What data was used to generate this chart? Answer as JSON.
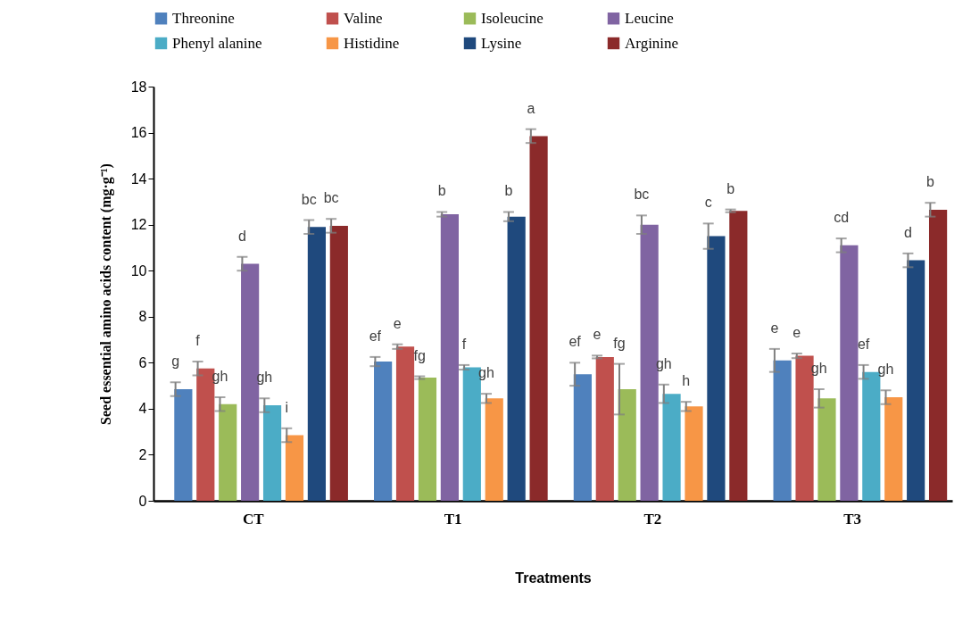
{
  "chart_data": {
    "type": "bar",
    "xlabel": "Treatments",
    "ylabel": "Seed essential amino acids content (mg·g⁻¹)",
    "categories": [
      "CT",
      "T1",
      "T2",
      "T3"
    ],
    "ylim": [
      0,
      18
    ],
    "yticks": [
      0,
      2,
      4,
      6,
      8,
      10,
      12,
      14,
      16,
      18
    ],
    "grid": false,
    "legend": "top",
    "series": [
      {
        "name": "Threonine",
        "color": "#4f81bd",
        "values": [
          4.85,
          6.05,
          5.5,
          6.1
        ],
        "errors": [
          0.3,
          0.2,
          0.5,
          0.5
        ],
        "value_labels": [
          "g",
          "ef",
          "ef",
          "e"
        ]
      },
      {
        "name": "Valine",
        "color": "#c0504d",
        "values": [
          5.75,
          6.7,
          6.25,
          6.3
        ],
        "errors": [
          0.3,
          0.1,
          0.06,
          0.1
        ],
        "value_labels": [
          "f",
          "e",
          "e",
          "e"
        ]
      },
      {
        "name": "Isoleucine",
        "color": "#9bbb59",
        "values": [
          4.2,
          5.35,
          4.85,
          4.45
        ],
        "errors": [
          0.3,
          0.06,
          1.1,
          0.4
        ],
        "value_labels": [
          "gh",
          "fg",
          "fg",
          "gh"
        ]
      },
      {
        "name": "Leucine",
        "color": "#8064a2",
        "values": [
          10.3,
          12.45,
          12.0,
          11.1
        ],
        "errors": [
          0.3,
          0.1,
          0.4,
          0.3
        ],
        "value_labels": [
          "d",
          "b",
          "bc",
          "cd"
        ]
      },
      {
        "name": "Phenyl alanine",
        "color": "#4bacc6",
        "values": [
          4.15,
          5.8,
          4.65,
          5.6
        ],
        "errors": [
          0.3,
          0.1,
          0.4,
          0.3
        ],
        "value_labels": [
          "gh",
          "f",
          "gh",
          "ef"
        ]
      },
      {
        "name": "Histidine",
        "color": "#f79646",
        "values": [
          2.85,
          4.45,
          4.1,
          4.5
        ],
        "errors": [
          0.3,
          0.2,
          0.2,
          0.3
        ],
        "value_labels": [
          "i",
          "gh",
          "h",
          "gh"
        ]
      },
      {
        "name": "Lysine",
        "color": "#1f497d",
        "values": [
          11.9,
          12.35,
          11.5,
          10.45
        ],
        "errors": [
          0.3,
          0.2,
          0.55,
          0.3
        ],
        "value_labels": [
          "bc",
          "b",
          "c",
          "d"
        ]
      },
      {
        "name": "Arginine",
        "color": "#8b2a2a",
        "values": [
          11.95,
          15.85,
          12.6,
          12.65
        ],
        "errors": [
          0.3,
          0.3,
          0.06,
          0.3
        ],
        "value_labels": [
          "bc",
          "a",
          "b",
          "b"
        ]
      }
    ]
  }
}
